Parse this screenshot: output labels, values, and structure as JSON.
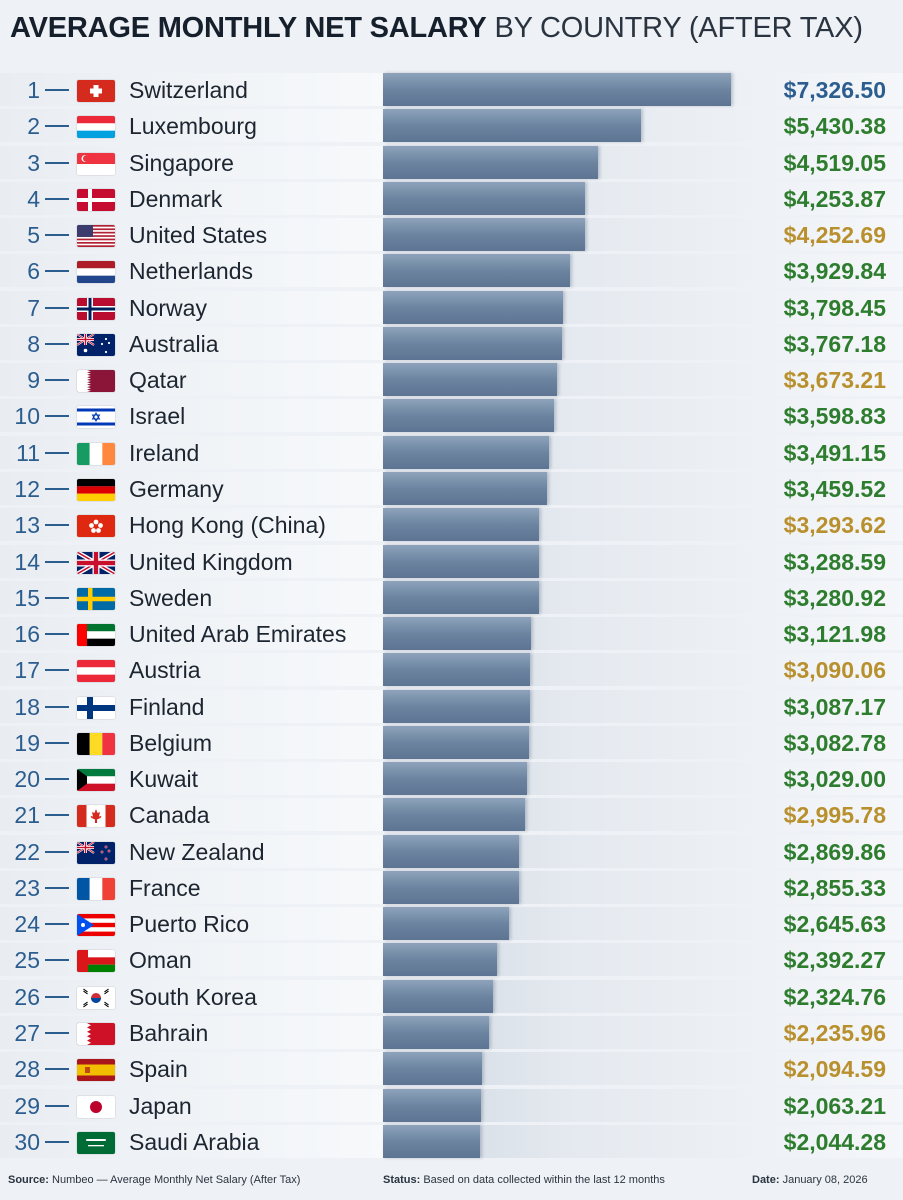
{
  "header": {
    "title_bold": "AVERAGE MONTHLY NET SALARY",
    "title_rest": "BY COUNTRY (AFTER TAX)"
  },
  "footer": {
    "source_label": "Source:",
    "source_text": "Numbeo — Average Monthly Net Salary (After Tax)",
    "status_label": "Status:",
    "status_text": "Based on data collected within the last 12 months",
    "date_label": "Date:",
    "date_text": "January 08, 2026"
  },
  "colors": {
    "rank": "#2b5d8f",
    "value_blue": "#2b5d8f",
    "value_green": "#2e7d2e",
    "value_gold": "#b8902e"
  },
  "chart_data": {
    "type": "bar",
    "orientation": "horizontal",
    "title": "AVERAGE MONTHLY NET SALARY BY COUNTRY (AFTER TAX)",
    "xlim": [
      0,
      7326.5
    ],
    "grid": false,
    "rows": [
      {
        "rank": "1",
        "country": "Switzerland",
        "value": 7326.5,
        "label": "$7,326.50",
        "color": "blue",
        "flag": "switzerland"
      },
      {
        "rank": "2",
        "country": "Luxembourg",
        "value": 5430.38,
        "label": "$5,430.38",
        "color": "green",
        "flag": "luxembourg"
      },
      {
        "rank": "3",
        "country": "Singapore",
        "value": 4519.05,
        "label": "$4,519.05",
        "color": "green",
        "flag": "singapore"
      },
      {
        "rank": "4",
        "country": "Denmark",
        "value": 4253.87,
        "label": "$4,253.87",
        "color": "green",
        "flag": "denmark"
      },
      {
        "rank": "5",
        "country": "United States",
        "value": 4252.69,
        "label": "$4,252.69",
        "color": "gold",
        "flag": "united-states"
      },
      {
        "rank": "6",
        "country": "Netherlands",
        "value": 3929.84,
        "label": "$3,929.84",
        "color": "green",
        "flag": "netherlands"
      },
      {
        "rank": "7",
        "country": "Norway",
        "value": 3798.45,
        "label": "$3,798.45",
        "color": "green",
        "flag": "norway"
      },
      {
        "rank": "8",
        "country": "Australia",
        "value": 3767.18,
        "label": "$3,767.18",
        "color": "green",
        "flag": "australia"
      },
      {
        "rank": "9",
        "country": "Qatar",
        "value": 3673.21,
        "label": "$3,673.21",
        "color": "gold",
        "flag": "qatar"
      },
      {
        "rank": "10",
        "country": "Israel",
        "value": 3598.83,
        "label": "$3,598.83",
        "color": "green",
        "flag": "israel"
      },
      {
        "rank": "11",
        "country": "Ireland",
        "value": 3491.15,
        "label": "$3,491.15",
        "color": "green",
        "flag": "ireland"
      },
      {
        "rank": "12",
        "country": "Germany",
        "value": 3459.52,
        "label": "$3,459.52",
        "color": "green",
        "flag": "germany"
      },
      {
        "rank": "13",
        "country": "Hong Kong (China)",
        "value": 3293.62,
        "label": "$3,293.62",
        "color": "gold",
        "flag": "hong-kong"
      },
      {
        "rank": "14",
        "country": "United Kingdom",
        "value": 3288.59,
        "label": "$3,288.59",
        "color": "green",
        "flag": "united-kingdom"
      },
      {
        "rank": "15",
        "country": "Sweden",
        "value": 3280.92,
        "label": "$3,280.92",
        "color": "green",
        "flag": "sweden"
      },
      {
        "rank": "16",
        "country": "United Arab Emirates",
        "value": 3121.98,
        "label": "$3,121.98",
        "color": "green",
        "flag": "uae"
      },
      {
        "rank": "17",
        "country": "Austria",
        "value": 3090.06,
        "label": "$3,090.06",
        "color": "gold",
        "flag": "austria"
      },
      {
        "rank": "18",
        "country": "Finland",
        "value": 3087.17,
        "label": "$3,087.17",
        "color": "green",
        "flag": "finland"
      },
      {
        "rank": "19",
        "country": "Belgium",
        "value": 3082.78,
        "label": "$3,082.78",
        "color": "green",
        "flag": "belgium"
      },
      {
        "rank": "20",
        "country": "Kuwait",
        "value": 3029.0,
        "label": "$3,029.00",
        "color": "green",
        "flag": "kuwait"
      },
      {
        "rank": "21",
        "country": "Canada",
        "value": 2995.78,
        "label": "$2,995.78",
        "color": "gold",
        "flag": "canada"
      },
      {
        "rank": "22",
        "country": "New Zealand",
        "value": 2869.86,
        "label": "$2,869.86",
        "color": "green",
        "flag": "new-zealand"
      },
      {
        "rank": "23",
        "country": "France",
        "value": 2855.33,
        "label": "$2,855.33",
        "color": "green",
        "flag": "france"
      },
      {
        "rank": "24",
        "country": "Puerto Rico",
        "value": 2645.63,
        "label": "$2,645.63",
        "color": "green",
        "flag": "puerto-rico"
      },
      {
        "rank": "25",
        "country": "Oman",
        "value": 2392.27,
        "label": "$2,392.27",
        "color": "green",
        "flag": "oman"
      },
      {
        "rank": "26",
        "country": "South Korea",
        "value": 2324.76,
        "label": "$2,324.76",
        "color": "green",
        "flag": "south-korea"
      },
      {
        "rank": "27",
        "country": "Bahrain",
        "value": 2235.96,
        "label": "$2,235.96",
        "color": "gold",
        "flag": "bahrain"
      },
      {
        "rank": "28",
        "country": "Spain",
        "value": 2094.59,
        "label": "$2,094.59",
        "color": "gold",
        "flag": "spain"
      },
      {
        "rank": "29",
        "country": "Japan",
        "value": 2063.21,
        "label": "$2,063.21",
        "color": "green",
        "flag": "japan"
      },
      {
        "rank": "30",
        "country": "Saudi Arabia",
        "value": 2044.28,
        "label": "$2,044.28",
        "color": "green",
        "flag": "saudi-arabia"
      }
    ]
  }
}
